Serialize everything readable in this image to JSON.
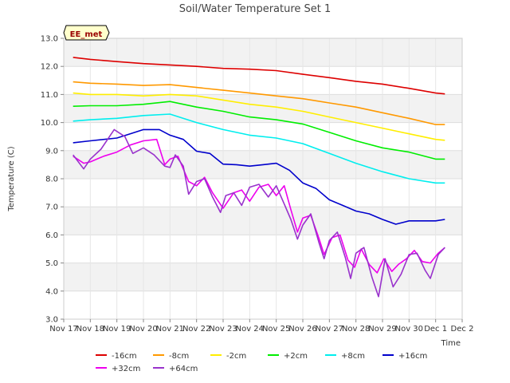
{
  "chart_data": {
    "type": "line",
    "title": "Soil/Water Temperature Set 1",
    "xlabel": "Time",
    "ylabel": "Temperature (C)",
    "annotation": "EE_met",
    "xlim": [
      0,
      15
    ],
    "ylim": [
      3.0,
      13.0
    ],
    "yticks": [
      3.0,
      4.0,
      5.0,
      6.0,
      7.0,
      8.0,
      9.0,
      10.0,
      11.0,
      12.0,
      13.0
    ],
    "xticks": [
      {
        "value": 0,
        "label": "Nov 17"
      },
      {
        "value": 1,
        "label": "Nov 18"
      },
      {
        "value": 2,
        "label": "Nov 19"
      },
      {
        "value": 3,
        "label": "Nov 20"
      },
      {
        "value": 4,
        "label": "Nov 21"
      },
      {
        "value": 5,
        "label": "Nov 22"
      },
      {
        "value": 6,
        "label": "Nov 23"
      },
      {
        "value": 7,
        "label": "Nov 24"
      },
      {
        "value": 8,
        "label": "Nov 25"
      },
      {
        "value": 9,
        "label": "Nov 26"
      },
      {
        "value": 10,
        "label": "Nov 27"
      },
      {
        "value": 11,
        "label": "Nov 28"
      },
      {
        "value": 12,
        "label": "Nov 29"
      },
      {
        "value": 13,
        "label": "Nov 30"
      },
      {
        "value": 14,
        "label": "Dec 1"
      },
      {
        "value": 15,
        "label": "Dec 2"
      }
    ],
    "grid": true,
    "legend_position": "bottom",
    "series": [
      {
        "name": "-16cm",
        "color": "#dd0000",
        "x": [
          0.35,
          1,
          2,
          3,
          4,
          5,
          6,
          7,
          8,
          9,
          10,
          11,
          12,
          13,
          14,
          14.35
        ],
        "y": [
          12.32,
          12.25,
          12.17,
          12.1,
          12.05,
          12.0,
          11.93,
          11.9,
          11.85,
          11.72,
          11.6,
          11.47,
          11.37,
          11.22,
          11.05,
          11.02
        ]
      },
      {
        "name": "-8cm",
        "color": "#ff9900",
        "x": [
          0.35,
          1,
          2,
          3,
          4,
          5,
          6,
          7,
          8,
          9,
          10,
          11,
          12,
          13,
          14,
          14.35
        ],
        "y": [
          11.45,
          11.4,
          11.37,
          11.32,
          11.35,
          11.25,
          11.15,
          11.05,
          10.95,
          10.85,
          10.7,
          10.55,
          10.35,
          10.15,
          9.93,
          9.93
        ]
      },
      {
        "name": "-2cm",
        "color": "#ffee00",
        "x": [
          0.35,
          1,
          2,
          3,
          4,
          5,
          6,
          7,
          8,
          9,
          10,
          11,
          12,
          13,
          14,
          14.35
        ],
        "y": [
          11.05,
          11.0,
          11.0,
          10.95,
          11.0,
          10.95,
          10.8,
          10.65,
          10.55,
          10.4,
          10.2,
          10.0,
          9.8,
          9.6,
          9.4,
          9.37
        ]
      },
      {
        "name": "+2cm",
        "color": "#00ee00",
        "x": [
          0.35,
          1,
          2,
          3,
          4,
          5,
          6,
          7,
          8,
          9,
          10,
          11,
          12,
          13,
          14,
          14.35
        ],
        "y": [
          10.58,
          10.6,
          10.6,
          10.65,
          10.75,
          10.55,
          10.4,
          10.2,
          10.1,
          9.95,
          9.65,
          9.35,
          9.1,
          8.95,
          8.7,
          8.7
        ]
      },
      {
        "name": "+8cm",
        "color": "#00eeee",
        "x": [
          0.35,
          1,
          2,
          3,
          4,
          5,
          6,
          7,
          8,
          9,
          10,
          11,
          12,
          13,
          14,
          14.35
        ],
        "y": [
          10.05,
          10.1,
          10.15,
          10.25,
          10.3,
          10.0,
          9.75,
          9.55,
          9.45,
          9.25,
          8.9,
          8.55,
          8.25,
          8.0,
          7.85,
          7.85
        ]
      },
      {
        "name": "+16cm",
        "color": "#0000cc",
        "x": [
          0.35,
          1,
          2,
          2.5,
          3,
          3.6,
          4,
          4.5,
          5,
          5.5,
          6,
          6.5,
          7,
          7.5,
          8,
          8.5,
          9,
          9.5,
          10,
          10.5,
          11,
          11.5,
          12,
          12.5,
          13,
          13.5,
          14,
          14.35
        ],
        "y": [
          9.28,
          9.35,
          9.45,
          9.6,
          9.75,
          9.75,
          9.55,
          9.4,
          8.98,
          8.9,
          8.52,
          8.5,
          8.45,
          8.5,
          8.55,
          8.3,
          7.85,
          7.65,
          7.25,
          7.05,
          6.85,
          6.75,
          6.55,
          6.38,
          6.5,
          6.5,
          6.5,
          6.55
        ]
      },
      {
        "name": "+32cm",
        "color": "#ee00ee",
        "x": [
          0.35,
          0.75,
          1,
          1.5,
          2,
          2.5,
          3,
          3.5,
          3.8,
          4,
          4.3,
          4.7,
          5,
          5.3,
          5.6,
          6,
          6.4,
          6.7,
          7,
          7.35,
          7.7,
          8,
          8.3,
          8.55,
          8.8,
          9,
          9.3,
          9.6,
          9.8,
          10.1,
          10.4,
          10.7,
          10.95,
          11.2,
          11.5,
          11.8,
          12.05,
          12.35,
          12.6,
          12.9,
          13.2,
          13.5,
          13.8,
          14.1,
          14.35
        ],
        "y": [
          8.8,
          8.55,
          8.6,
          8.8,
          8.95,
          9.2,
          9.35,
          9.4,
          8.5,
          8.7,
          8.8,
          7.9,
          7.75,
          8.05,
          7.5,
          6.95,
          7.5,
          7.6,
          7.2,
          7.7,
          7.8,
          7.4,
          7.75,
          6.9,
          6.1,
          6.6,
          6.7,
          5.9,
          5.3,
          5.9,
          6.0,
          5.1,
          4.85,
          5.5,
          4.95,
          4.65,
          5.15,
          4.7,
          4.95,
          5.15,
          5.45,
          5.05,
          5.0,
          5.35,
          5.55
        ]
      },
      {
        "name": "+64cm",
        "color": "#9933cc",
        "x": [
          0.35,
          0.75,
          1,
          1.4,
          1.9,
          2.3,
          2.6,
          3,
          3.4,
          3.8,
          4,
          4.2,
          4.5,
          4.7,
          5,
          5.3,
          5.6,
          5.9,
          6.1,
          6.4,
          6.7,
          7,
          7.35,
          7.7,
          8,
          8.3,
          8.55,
          8.8,
          9,
          9.3,
          9.6,
          9.8,
          10,
          10.3,
          10.6,
          10.8,
          11,
          11.3,
          11.6,
          11.85,
          12.1,
          12.4,
          12.7,
          13,
          13.3,
          13.6,
          13.8,
          14.1,
          14.35
        ],
        "y": [
          8.85,
          8.35,
          8.7,
          9.05,
          9.75,
          9.5,
          8.9,
          9.1,
          8.85,
          8.45,
          8.4,
          8.85,
          8.45,
          7.45,
          7.9,
          8.0,
          7.35,
          6.8,
          7.4,
          7.5,
          7.05,
          7.7,
          7.8,
          7.35,
          7.75,
          7.1,
          6.55,
          5.85,
          6.35,
          6.75,
          5.75,
          5.15,
          5.8,
          6.1,
          5.2,
          4.45,
          5.35,
          5.55,
          4.5,
          3.8,
          5.15,
          4.15,
          4.6,
          5.3,
          5.35,
          4.75,
          4.45,
          5.3,
          5.55
        ]
      }
    ]
  }
}
